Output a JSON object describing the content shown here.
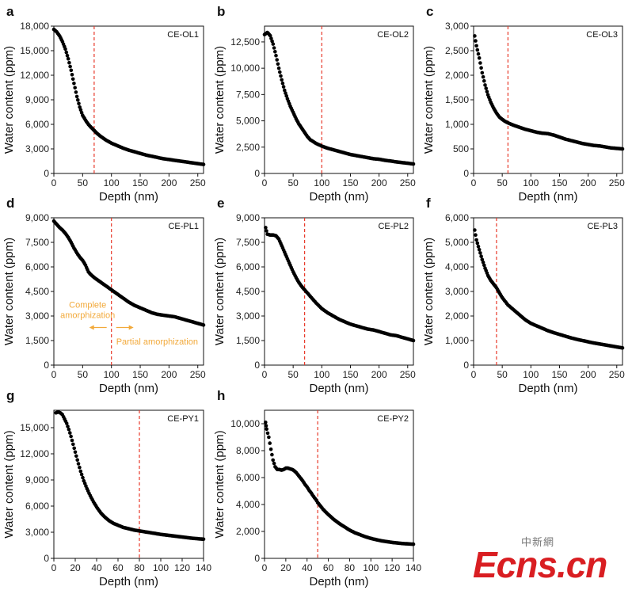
{
  "watermark": {
    "chinese": "中新網",
    "brand": "Ecns.cn",
    "color": "#d91e22"
  },
  "marker_color": "#000000",
  "reference_line_color": "#e8392a",
  "annotation_color": "#f2a93a",
  "chart_data": [
    {
      "panel": "a",
      "type": "scatter",
      "sample": "CE-OL1",
      "xlabel": "Depth (nm)",
      "ylabel": "Water content (ppm)",
      "xlim": [
        0,
        260
      ],
      "ylim": [
        0,
        18000
      ],
      "xticks": [
        0,
        50,
        100,
        150,
        200,
        250
      ],
      "yticks": [
        0,
        3000,
        6000,
        9000,
        12000,
        15000,
        18000
      ],
      "ytick_labels": [
        "0",
        "3,000",
        "6,000",
        "9,000",
        "12,000",
        "15,000",
        "18,000"
      ],
      "reference_x": 70,
      "x": [
        0,
        5,
        10,
        15,
        20,
        25,
        30,
        35,
        40,
        45,
        50,
        55,
        60,
        65,
        70,
        75,
        80,
        90,
        100,
        110,
        120,
        130,
        140,
        150,
        160,
        170,
        180,
        190,
        200,
        210,
        220,
        230,
        240,
        250,
        260
      ],
      "y": [
        17600,
        17300,
        16800,
        16100,
        15200,
        14000,
        12600,
        11000,
        9400,
        8100,
        7100,
        6500,
        6000,
        5600,
        5250,
        4900,
        4600,
        4100,
        3700,
        3400,
        3100,
        2850,
        2650,
        2450,
        2250,
        2100,
        1950,
        1800,
        1700,
        1600,
        1500,
        1400,
        1300,
        1200,
        1100
      ]
    },
    {
      "panel": "b",
      "type": "scatter",
      "sample": "CE-OL2",
      "xlabel": "Depth (nm)",
      "ylabel": "Water content (ppm)",
      "xlim": [
        0,
        260
      ],
      "ylim": [
        0,
        14000
      ],
      "xticks": [
        0,
        50,
        100,
        150,
        200,
        250
      ],
      "yticks": [
        0,
        2500,
        5000,
        7500,
        10000,
        12500
      ],
      "ytick_labels": [
        "0",
        "2,500",
        "5,000",
        "7,500",
        "10,000",
        "12,500"
      ],
      "reference_x": 100,
      "x": [
        0,
        5,
        10,
        15,
        20,
        25,
        30,
        35,
        40,
        45,
        50,
        55,
        60,
        65,
        70,
        75,
        80,
        90,
        100,
        110,
        120,
        130,
        140,
        150,
        160,
        170,
        180,
        190,
        200,
        210,
        220,
        230,
        240,
        250,
        260
      ],
      "y": [
        13200,
        13400,
        13100,
        12300,
        11200,
        10000,
        8900,
        7900,
        7100,
        6400,
        5800,
        5200,
        4700,
        4300,
        3900,
        3500,
        3200,
        2850,
        2600,
        2400,
        2250,
        2100,
        1950,
        1800,
        1700,
        1600,
        1500,
        1400,
        1350,
        1250,
        1180,
        1100,
        1030,
        970,
        900
      ]
    },
    {
      "panel": "c",
      "type": "scatter",
      "sample": "CE-OL3",
      "xlabel": "Depth (nm)",
      "ylabel": "Water content (ppm)",
      "xlim": [
        0,
        260
      ],
      "ylim": [
        0,
        3000
      ],
      "xticks": [
        0,
        50,
        100,
        150,
        200,
        250
      ],
      "yticks": [
        0,
        500,
        1000,
        1500,
        2000,
        2500,
        3000
      ],
      "ytick_labels": [
        "0",
        "500",
        "1,000",
        "1,500",
        "2,000",
        "2,500",
        "3,000"
      ],
      "reference_x": 60,
      "x": [
        2,
        5,
        10,
        15,
        20,
        25,
        30,
        35,
        40,
        45,
        50,
        55,
        60,
        70,
        80,
        90,
        100,
        110,
        120,
        130,
        140,
        150,
        160,
        170,
        180,
        190,
        200,
        210,
        220,
        230,
        240,
        250,
        260
      ],
      "y": [
        2800,
        2600,
        2350,
        2050,
        1800,
        1600,
        1450,
        1330,
        1230,
        1150,
        1100,
        1060,
        1030,
        980,
        940,
        900,
        870,
        840,
        820,
        810,
        780,
        740,
        700,
        670,
        640,
        610,
        590,
        570,
        560,
        540,
        520,
        510,
        500
      ]
    },
    {
      "panel": "d",
      "type": "scatter",
      "sample": "CE-PL1",
      "xlabel": "Depth (nm)",
      "ylabel": "Water content (ppm)",
      "xlim": [
        0,
        260
      ],
      "ylim": [
        0,
        9000
      ],
      "xticks": [
        0,
        50,
        100,
        150,
        200,
        250
      ],
      "yticks": [
        0,
        1500,
        3000,
        4500,
        6000,
        7500,
        9000
      ],
      "ytick_labels": [
        "0",
        "1,500",
        "3,000",
        "4,500",
        "6,000",
        "7,500",
        "9,000"
      ],
      "reference_x": 100,
      "annotations": [
        "Complete amorphization",
        "Partial amorphization"
      ],
      "x": [
        0,
        5,
        10,
        15,
        20,
        25,
        30,
        35,
        40,
        45,
        50,
        55,
        60,
        65,
        70,
        80,
        90,
        100,
        110,
        120,
        130,
        140,
        150,
        160,
        170,
        180,
        190,
        200,
        210,
        220,
        230,
        240,
        250,
        260
      ],
      "y": [
        8800,
        8600,
        8400,
        8250,
        8050,
        7800,
        7500,
        7150,
        6850,
        6600,
        6400,
        6100,
        5700,
        5500,
        5350,
        5100,
        4850,
        4600,
        4350,
        4100,
        3850,
        3650,
        3500,
        3350,
        3200,
        3100,
        3050,
        3000,
        2950,
        2850,
        2750,
        2650,
        2550,
        2450
      ]
    },
    {
      "panel": "e",
      "type": "scatter",
      "sample": "CE-PL2",
      "xlabel": "Depth (nm)",
      "ylabel": "Water content (ppm)",
      "xlim": [
        0,
        260
      ],
      "ylim": [
        0,
        9000
      ],
      "xticks": [
        0,
        50,
        100,
        150,
        200,
        250
      ],
      "yticks": [
        0,
        1500,
        3000,
        4500,
        6000,
        7500,
        9000
      ],
      "ytick_labels": [
        "0",
        "1,500",
        "3,000",
        "4,500",
        "6,000",
        "7,500",
        "9,000"
      ],
      "reference_x": 70,
      "x": [
        2,
        5,
        10,
        15,
        20,
        25,
        30,
        35,
        40,
        45,
        50,
        55,
        60,
        65,
        70,
        80,
        90,
        100,
        110,
        120,
        130,
        140,
        150,
        160,
        170,
        180,
        190,
        200,
        210,
        220,
        230,
        240,
        250,
        260
      ],
      "y": [
        8400,
        8000,
        7950,
        7950,
        7900,
        7700,
        7300,
        6900,
        6500,
        6100,
        5700,
        5350,
        5050,
        4800,
        4600,
        4200,
        3800,
        3450,
        3200,
        3000,
        2800,
        2650,
        2500,
        2400,
        2300,
        2200,
        2150,
        2050,
        1950,
        1850,
        1800,
        1700,
        1600,
        1500
      ]
    },
    {
      "panel": "f",
      "type": "scatter",
      "sample": "CE-PL3",
      "xlabel": "Depth (nm)",
      "ylabel": "Water content (ppm)",
      "xlim": [
        0,
        260
      ],
      "ylim": [
        0,
        6000
      ],
      "xticks": [
        0,
        50,
        100,
        150,
        200,
        250
      ],
      "yticks": [
        0,
        1000,
        2000,
        3000,
        4000,
        5000,
        6000
      ],
      "ytick_labels": [
        "0",
        "1,000",
        "2,000",
        "3,000",
        "4,000",
        "5,000",
        "6,000"
      ],
      "reference_x": 40,
      "x": [
        2,
        5,
        10,
        15,
        20,
        25,
        30,
        35,
        40,
        45,
        50,
        60,
        70,
        80,
        90,
        100,
        110,
        120,
        130,
        140,
        150,
        160,
        170,
        180,
        190,
        200,
        210,
        220,
        230,
        240,
        250,
        260
      ],
      "y": [
        5500,
        5100,
        4700,
        4300,
        3950,
        3650,
        3450,
        3300,
        3150,
        2950,
        2750,
        2450,
        2250,
        2050,
        1850,
        1700,
        1600,
        1500,
        1400,
        1320,
        1250,
        1180,
        1110,
        1050,
        1000,
        950,
        900,
        860,
        820,
        780,
        740,
        700
      ]
    },
    {
      "panel": "g",
      "type": "scatter",
      "sample": "CE-PY1",
      "xlabel": "Depth (nm)",
      "ylabel": "Water content (ppm)",
      "xlim": [
        0,
        140
      ],
      "ylim": [
        0,
        17000
      ],
      "xticks": [
        0,
        20,
        40,
        60,
        80,
        100,
        120,
        140
      ],
      "yticks": [
        0,
        3000,
        6000,
        9000,
        12000,
        15000
      ],
      "ytick_labels": [
        "0",
        "3,000",
        "6,000",
        "9,000",
        "12,000",
        "15,000"
      ],
      "reference_x": 80,
      "x": [
        2,
        4,
        6,
        8,
        10,
        12,
        14,
        16,
        18,
        20,
        22,
        25,
        28,
        31,
        34,
        37,
        40,
        44,
        48,
        52,
        56,
        60,
        65,
        70,
        75,
        80,
        85,
        90,
        95,
        100,
        110,
        120,
        130,
        140
      ],
      "y": [
        16700,
        16800,
        16700,
        16500,
        16000,
        15500,
        14800,
        14000,
        13100,
        12200,
        11300,
        10000,
        8900,
        8000,
        7200,
        6500,
        5900,
        5200,
        4700,
        4300,
        4000,
        3800,
        3550,
        3400,
        3250,
        3150,
        3050,
        2950,
        2850,
        2750,
        2600,
        2450,
        2300,
        2200
      ]
    },
    {
      "panel": "h",
      "type": "scatter",
      "sample": "CE-PY2",
      "xlabel": "Depth (nm)",
      "ylabel": "Water content (ppm)",
      "xlim": [
        0,
        140
      ],
      "ylim": [
        0,
        11000
      ],
      "xticks": [
        0,
        20,
        40,
        60,
        80,
        100,
        120,
        140
      ],
      "yticks": [
        0,
        2000,
        4000,
        6000,
        8000,
        10000
      ],
      "ytick_labels": [
        "0",
        "2,000",
        "4,000",
        "6,000",
        "8,000",
        "10,000"
      ],
      "reference_x": 50,
      "x": [
        1,
        2,
        4,
        6,
        8,
        10,
        12,
        14,
        16,
        18,
        20,
        22,
        24,
        26,
        28,
        30,
        32,
        34,
        36,
        38,
        40,
        42,
        44,
        46,
        48,
        50,
        55,
        60,
        65,
        70,
        75,
        80,
        85,
        90,
        95,
        100,
        110,
        120,
        130,
        140
      ],
      "y": [
        10100,
        9600,
        9000,
        8100,
        7300,
        6800,
        6600,
        6600,
        6550,
        6600,
        6700,
        6700,
        6650,
        6600,
        6500,
        6350,
        6150,
        5950,
        5750,
        5500,
        5300,
        5050,
        4850,
        4600,
        4400,
        4150,
        3650,
        3250,
        2900,
        2600,
        2350,
        2100,
        1900,
        1750,
        1600,
        1480,
        1300,
        1180,
        1100,
        1050
      ]
    }
  ]
}
